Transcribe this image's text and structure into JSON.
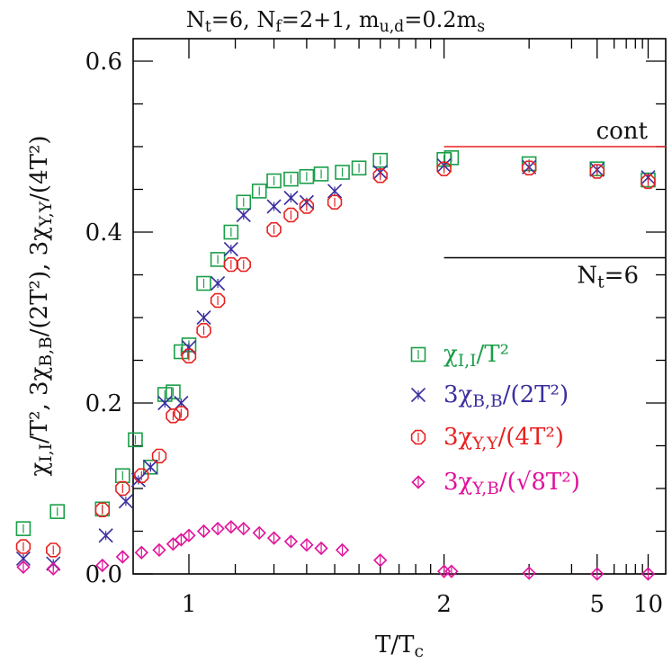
{
  "chart_data": {
    "type": "scatter",
    "title": "N_t=6, N_f=2+1, m_u,d=0.2m_s",
    "xlabel": "T/T_c",
    "ylabel": "χ_I,I/T², 3χ_B,B/(2T²), 3χ_Y,Y/(4T²)",
    "x_scale": "reciprocal",
    "x_ticks": [
      1,
      2,
      5,
      10
    ],
    "y_ticks": [
      0.0,
      0.2,
      0.4,
      0.6
    ],
    "ylim": [
      0.0,
      0.6
    ],
    "reference_lines": [
      {
        "label": "cont",
        "value": 0.5,
        "from_x": 2,
        "color": "#e82020"
      },
      {
        "label": "N_t=6",
        "value": 0.37,
        "from_x": 2,
        "color": "#000000"
      }
    ],
    "legend_position": "right",
    "series": [
      {
        "name": "χ_I,I/T²",
        "marker": "square",
        "color": "#1a9e48",
        "x": [
          0.755,
          0.795,
          0.855,
          0.885,
          0.905,
          0.93,
          0.955,
          0.97,
          0.985,
          1.0,
          1.03,
          1.06,
          1.09,
          1.12,
          1.16,
          1.2,
          1.25,
          1.3,
          1.35,
          1.43,
          1.5,
          1.6,
          2.0,
          2.06,
          3.0,
          5.0,
          10.0
        ],
        "y": [
          0.053,
          0.073,
          0.076,
          0.115,
          0.157,
          0.125,
          0.21,
          0.213,
          0.26,
          0.268,
          0.34,
          0.368,
          0.4,
          0.435,
          0.448,
          0.46,
          0.462,
          0.465,
          0.468,
          0.47,
          0.475,
          0.484,
          0.485,
          0.487,
          0.48,
          0.474,
          0.461
        ]
      },
      {
        "name": "3χ_B,B/(2T²)",
        "marker": "cross",
        "color": "#3a2fa0",
        "x": [
          0.755,
          0.79,
          0.86,
          0.89,
          0.91,
          0.93,
          0.955,
          0.985,
          1.0,
          1.03,
          1.06,
          1.09,
          1.12,
          1.2,
          1.25,
          1.3,
          1.4,
          1.6,
          2.0,
          3.0,
          5.0,
          10.0
        ],
        "y": [
          0.018,
          0.012,
          0.045,
          0.085,
          0.11,
          0.125,
          0.2,
          0.2,
          0.265,
          0.3,
          0.34,
          0.38,
          0.42,
          0.43,
          0.44,
          0.435,
          0.448,
          0.47,
          0.478,
          0.476,
          0.473,
          0.464
        ]
      },
      {
        "name": "3χ_Y,Y/(4T²)",
        "marker": "octagon",
        "color": "#e82020",
        "x": [
          0.755,
          0.79,
          0.855,
          0.885,
          0.915,
          0.945,
          0.97,
          0.985,
          1.0,
          1.03,
          1.06,
          1.09,
          1.12,
          1.2,
          1.25,
          1.3,
          1.4,
          1.6,
          2.0,
          3.0,
          5.0,
          10.0
        ],
        "y": [
          0.032,
          0.028,
          0.075,
          0.1,
          0.115,
          0.138,
          0.185,
          0.188,
          0.255,
          0.285,
          0.32,
          0.362,
          0.362,
          0.403,
          0.42,
          0.43,
          0.435,
          0.466,
          0.474,
          0.475,
          0.471,
          0.459
        ]
      },
      {
        "name": "3χ_Y,B/(√8T²)",
        "marker": "diamond",
        "color": "#e0109a",
        "x": [
          0.755,
          0.79,
          0.855,
          0.885,
          0.915,
          0.945,
          0.97,
          0.985,
          1.0,
          1.03,
          1.06,
          1.09,
          1.12,
          1.16,
          1.2,
          1.25,
          1.3,
          1.35,
          1.43,
          1.6,
          2.0,
          2.06,
          3.0,
          5.0,
          10.0
        ],
        "y": [
          0.008,
          0.006,
          0.01,
          0.02,
          0.025,
          0.028,
          0.035,
          0.04,
          0.045,
          0.05,
          0.053,
          0.055,
          0.053,
          0.048,
          0.042,
          0.038,
          0.034,
          0.03,
          0.028,
          0.016,
          0.003,
          0.003,
          0.001,
          0.0,
          0.0
        ]
      }
    ]
  }
}
